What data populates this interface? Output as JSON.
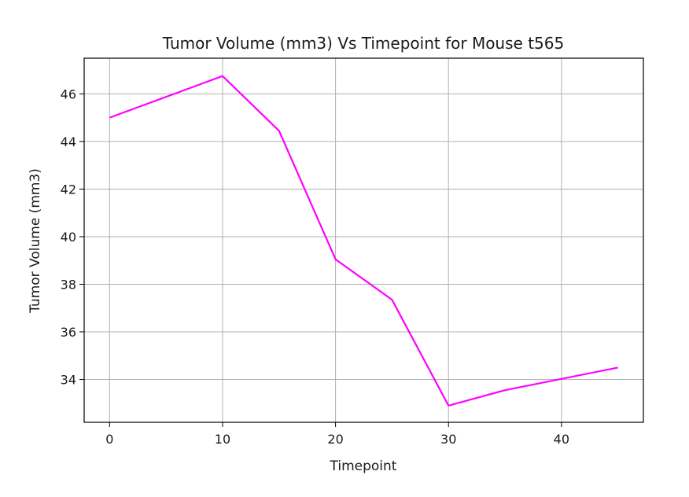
{
  "chart_data": {
    "type": "line",
    "title": "Tumor Volume (mm3) Vs Timepoint for Mouse t565",
    "xlabel": "Timepoint",
    "ylabel": "Tumor Volume (mm3)",
    "xlim": [
      -2.25,
      47.25
    ],
    "ylim": [
      32.2,
      47.5
    ],
    "xticks": [
      0,
      10,
      20,
      30,
      40
    ],
    "yticks": [
      34,
      36,
      38,
      40,
      42,
      44,
      46
    ],
    "grid": true,
    "series": [
      {
        "color": "#ff00ff",
        "x": [
          0,
          10,
          15,
          20,
          25,
          30,
          35,
          45
        ],
        "y": [
          45.0,
          46.75,
          44.45,
          39.05,
          37.35,
          32.9,
          33.55,
          34.5
        ]
      }
    ]
  }
}
